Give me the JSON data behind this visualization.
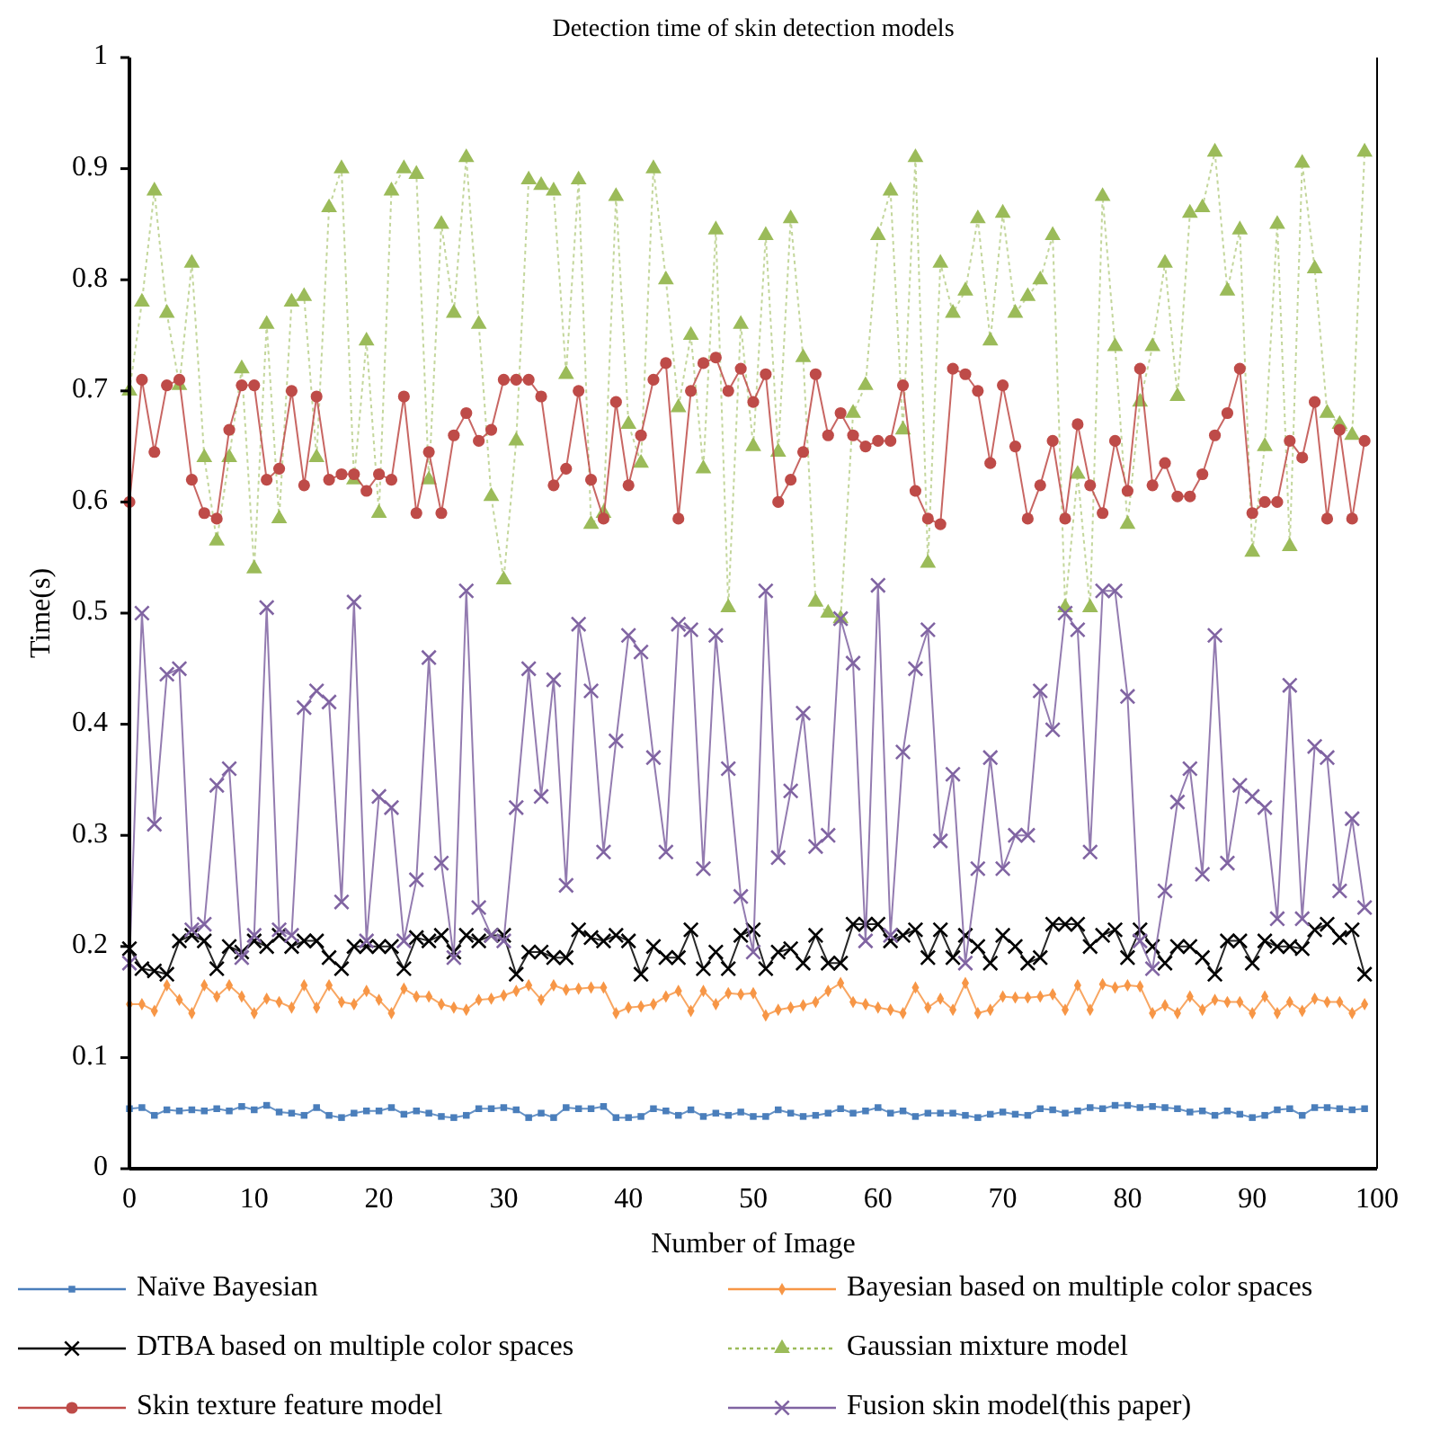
{
  "chart_data": {
    "type": "line",
    "title": "Detection time of skin detection models",
    "xlabel": "Number of Image",
    "ylabel": "Time(s)",
    "x": [
      0,
      1,
      2,
      3,
      4,
      5,
      6,
      7,
      8,
      9,
      10,
      11,
      12,
      13,
      14,
      15,
      16,
      17,
      18,
      19,
      20,
      21,
      22,
      23,
      24,
      25,
      26,
      27,
      28,
      29,
      30,
      31,
      32,
      33,
      34,
      35,
      36,
      37,
      38,
      39,
      40,
      41,
      42,
      43,
      44,
      45,
      46,
      47,
      48,
      49,
      50,
      51,
      52,
      53,
      54,
      55,
      56,
      57,
      58,
      59,
      60,
      61,
      62,
      63,
      64,
      65,
      66,
      67,
      68,
      69,
      70,
      71,
      72,
      73,
      74,
      75,
      76,
      77,
      78,
      79,
      80,
      81,
      82,
      83,
      84,
      85,
      86,
      87,
      88,
      89,
      90,
      91,
      92,
      93,
      94,
      95,
      96,
      97,
      98,
      99
    ],
    "xlim": [
      0,
      100
    ],
    "xticks": [
      0,
      10,
      20,
      30,
      40,
      50,
      60,
      70,
      80,
      90,
      100
    ],
    "ylim": [
      0,
      1
    ],
    "yticks": [
      0,
      0.1,
      0.2,
      0.3,
      0.4,
      0.5,
      0.6,
      0.7,
      0.8,
      0.9,
      1
    ],
    "grid": false,
    "legend": "bottom",
    "series": [
      {
        "name": "Naïve Bayesian",
        "color": "#4a7ebb",
        "marker": "square",
        "values": [
          0.054,
          0.055,
          0.048,
          0.053,
          0.052,
          0.053,
          0.052,
          0.054,
          0.052,
          0.056,
          0.053,
          0.057,
          0.051,
          0.05,
          0.048,
          0.055,
          0.048,
          0.046,
          0.05,
          0.052,
          0.052,
          0.055,
          0.049,
          0.052,
          0.05,
          0.047,
          0.046,
          0.048,
          0.054,
          0.054,
          0.055,
          0.053,
          0.046,
          0.05,
          0.046,
          0.055,
          0.054,
          0.054,
          0.056,
          0.046,
          0.046,
          0.047,
          0.054,
          0.052,
          0.048,
          0.053,
          0.047,
          0.05,
          0.048,
          0.051,
          0.047,
          0.047,
          0.053,
          0.05,
          0.047,
          0.048,
          0.05,
          0.054,
          0.05,
          0.052,
          0.055,
          0.05,
          0.052,
          0.047,
          0.05,
          0.05,
          0.05,
          0.048,
          0.046,
          0.049,
          0.051,
          0.049,
          0.048,
          0.054,
          0.053,
          0.05,
          0.052,
          0.055,
          0.054,
          0.057,
          0.057,
          0.055,
          0.056,
          0.055,
          0.054,
          0.051,
          0.052,
          0.048,
          0.052,
          0.049,
          0.046,
          0.048,
          0.053,
          0.054,
          0.048,
          0.055,
          0.055,
          0.054,
          0.053,
          0.054
        ]
      },
      {
        "name": "Bayesian based on multiple color spaces",
        "color": "#f79646",
        "marker": "diamond",
        "values": [
          0.148,
          0.148,
          0.142,
          0.165,
          0.152,
          0.14,
          0.165,
          0.155,
          0.165,
          0.155,
          0.14,
          0.153,
          0.15,
          0.145,
          0.165,
          0.145,
          0.165,
          0.15,
          0.148,
          0.16,
          0.152,
          0.14,
          0.162,
          0.155,
          0.155,
          0.148,
          0.145,
          0.143,
          0.152,
          0.153,
          0.156,
          0.16,
          0.165,
          0.152,
          0.165,
          0.161,
          0.162,
          0.163,
          0.163,
          0.14,
          0.145,
          0.146,
          0.148,
          0.155,
          0.16,
          0.142,
          0.16,
          0.148,
          0.158,
          0.157,
          0.158,
          0.138,
          0.143,
          0.145,
          0.147,
          0.15,
          0.16,
          0.167,
          0.15,
          0.148,
          0.145,
          0.143,
          0.14,
          0.163,
          0.145,
          0.153,
          0.143,
          0.167,
          0.14,
          0.143,
          0.155,
          0.154,
          0.154,
          0.155,
          0.157,
          0.143,
          0.165,
          0.143,
          0.166,
          0.163,
          0.165,
          0.164,
          0.14,
          0.147,
          0.14,
          0.155,
          0.143,
          0.152,
          0.15,
          0.15,
          0.14,
          0.155,
          0.14,
          0.15,
          0.142,
          0.153,
          0.15,
          0.15,
          0.14,
          0.148
        ]
      },
      {
        "name": "DTBA based on multiple color spaces",
        "color": "#000000",
        "marker": "cross",
        "values": [
          0.198,
          0.18,
          0.178,
          0.175,
          0.205,
          0.21,
          0.205,
          0.18,
          0.2,
          0.195,
          0.205,
          0.2,
          0.21,
          0.2,
          0.205,
          0.205,
          0.19,
          0.18,
          0.2,
          0.2,
          0.2,
          0.2,
          0.18,
          0.208,
          0.205,
          0.21,
          0.195,
          0.21,
          0.205,
          0.21,
          0.21,
          0.175,
          0.195,
          0.195,
          0.19,
          0.19,
          0.215,
          0.208,
          0.205,
          0.21,
          0.205,
          0.175,
          0.2,
          0.19,
          0.19,
          0.215,
          0.18,
          0.195,
          0.18,
          0.21,
          0.215,
          0.18,
          0.195,
          0.198,
          0.185,
          0.21,
          0.185,
          0.185,
          0.22,
          0.22,
          0.22,
          0.205,
          0.21,
          0.215,
          0.19,
          0.215,
          0.19,
          0.21,
          0.2,
          0.185,
          0.21,
          0.2,
          0.185,
          0.19,
          0.22,
          0.22,
          0.22,
          0.2,
          0.21,
          0.215,
          0.19,
          0.215,
          0.2,
          0.185,
          0.2,
          0.2,
          0.19,
          0.175,
          0.205,
          0.205,
          0.185,
          0.205,
          0.2,
          0.2,
          0.198,
          0.215,
          0.22,
          0.208,
          0.215,
          0.175
        ]
      },
      {
        "name": "Gaussian mixture model",
        "color": "#9bbb59",
        "marker": "triangle",
        "line_style": "dotted",
        "values": [
          0.7,
          0.78,
          0.88,
          0.77,
          0.705,
          0.815,
          0.64,
          0.565,
          0.64,
          0.72,
          0.54,
          0.76,
          0.585,
          0.78,
          0.785,
          0.64,
          0.865,
          0.9,
          0.62,
          0.745,
          0.59,
          0.88,
          0.9,
          0.895,
          0.62,
          0.85,
          0.77,
          0.91,
          0.76,
          0.605,
          0.53,
          0.655,
          0.89,
          0.885,
          0.88,
          0.715,
          0.89,
          0.58,
          0.59,
          0.875,
          0.67,
          0.635,
          0.9,
          0.8,
          0.685,
          0.75,
          0.63,
          0.845,
          0.505,
          0.76,
          0.65,
          0.84,
          0.645,
          0.855,
          0.73,
          0.51,
          0.5,
          0.495,
          0.68,
          0.705,
          0.84,
          0.88,
          0.665,
          0.91,
          0.545,
          0.815,
          0.77,
          0.79,
          0.855,
          0.745,
          0.86,
          0.77,
          0.785,
          0.8,
          0.84,
          0.505,
          0.625,
          0.505,
          0.875,
          0.74,
          0.58,
          0.69,
          0.74,
          0.815,
          0.695,
          0.86,
          0.865,
          0.915,
          0.79,
          0.845,
          0.555,
          0.65,
          0.85,
          0.56,
          0.905,
          0.81,
          0.68,
          0.67,
          0.66,
          0.915
        ]
      },
      {
        "name": "Skin texture feature model",
        "color": "#be4b48",
        "marker": "circle",
        "values": [
          0.6,
          0.71,
          0.645,
          0.705,
          0.71,
          0.62,
          0.59,
          0.585,
          0.665,
          0.705,
          0.705,
          0.62,
          0.63,
          0.7,
          0.615,
          0.695,
          0.62,
          0.625,
          0.625,
          0.61,
          0.625,
          0.62,
          0.695,
          0.59,
          0.645,
          0.59,
          0.66,
          0.68,
          0.655,
          0.665,
          0.71,
          0.71,
          0.71,
          0.695,
          0.615,
          0.63,
          0.7,
          0.62,
          0.585,
          0.69,
          0.615,
          0.66,
          0.71,
          0.725,
          0.585,
          0.7,
          0.725,
          0.73,
          0.7,
          0.72,
          0.69,
          0.715,
          0.6,
          0.62,
          0.645,
          0.715,
          0.66,
          0.68,
          0.66,
          0.65,
          0.655,
          0.655,
          0.705,
          0.61,
          0.585,
          0.58,
          0.72,
          0.715,
          0.7,
          0.635,
          0.705,
          0.65,
          0.585,
          0.615,
          0.655,
          0.585,
          0.67,
          0.615,
          0.59,
          0.655,
          0.61,
          0.72,
          0.615,
          0.635,
          0.605,
          0.605,
          0.625,
          0.66,
          0.68,
          0.72,
          0.59,
          0.6,
          0.6,
          0.655,
          0.64,
          0.69,
          0.585,
          0.665,
          0.585,
          0.655
        ]
      },
      {
        "name": "Fusion skin model(this paper)",
        "color": "#8064a2",
        "marker": "cross",
        "values": [
          0.185,
          0.5,
          0.31,
          0.445,
          0.45,
          0.215,
          0.22,
          0.345,
          0.36,
          0.19,
          0.21,
          0.505,
          0.215,
          0.21,
          0.415,
          0.43,
          0.42,
          0.24,
          0.51,
          0.205,
          0.335,
          0.325,
          0.205,
          0.26,
          0.46,
          0.275,
          0.19,
          0.52,
          0.235,
          0.21,
          0.205,
          0.325,
          0.45,
          0.335,
          0.44,
          0.255,
          0.49,
          0.43,
          0.285,
          0.385,
          0.48,
          0.465,
          0.37,
          0.285,
          0.49,
          0.485,
          0.27,
          0.48,
          0.36,
          0.245,
          0.195,
          0.52,
          0.28,
          0.34,
          0.41,
          0.29,
          0.3,
          0.495,
          0.455,
          0.205,
          0.525,
          0.21,
          0.375,
          0.45,
          0.485,
          0.295,
          0.355,
          0.185,
          0.27,
          0.37,
          0.27,
          0.3,
          0.3,
          0.43,
          0.395,
          0.5,
          0.485,
          0.285,
          0.52,
          0.52,
          0.425,
          0.205,
          0.18,
          0.25,
          0.33,
          0.36,
          0.265,
          0.48,
          0.275,
          0.345,
          0.335,
          0.325,
          0.225,
          0.435,
          0.225,
          0.38,
          0.37,
          0.25,
          0.315,
          0.235
        ]
      }
    ]
  }
}
